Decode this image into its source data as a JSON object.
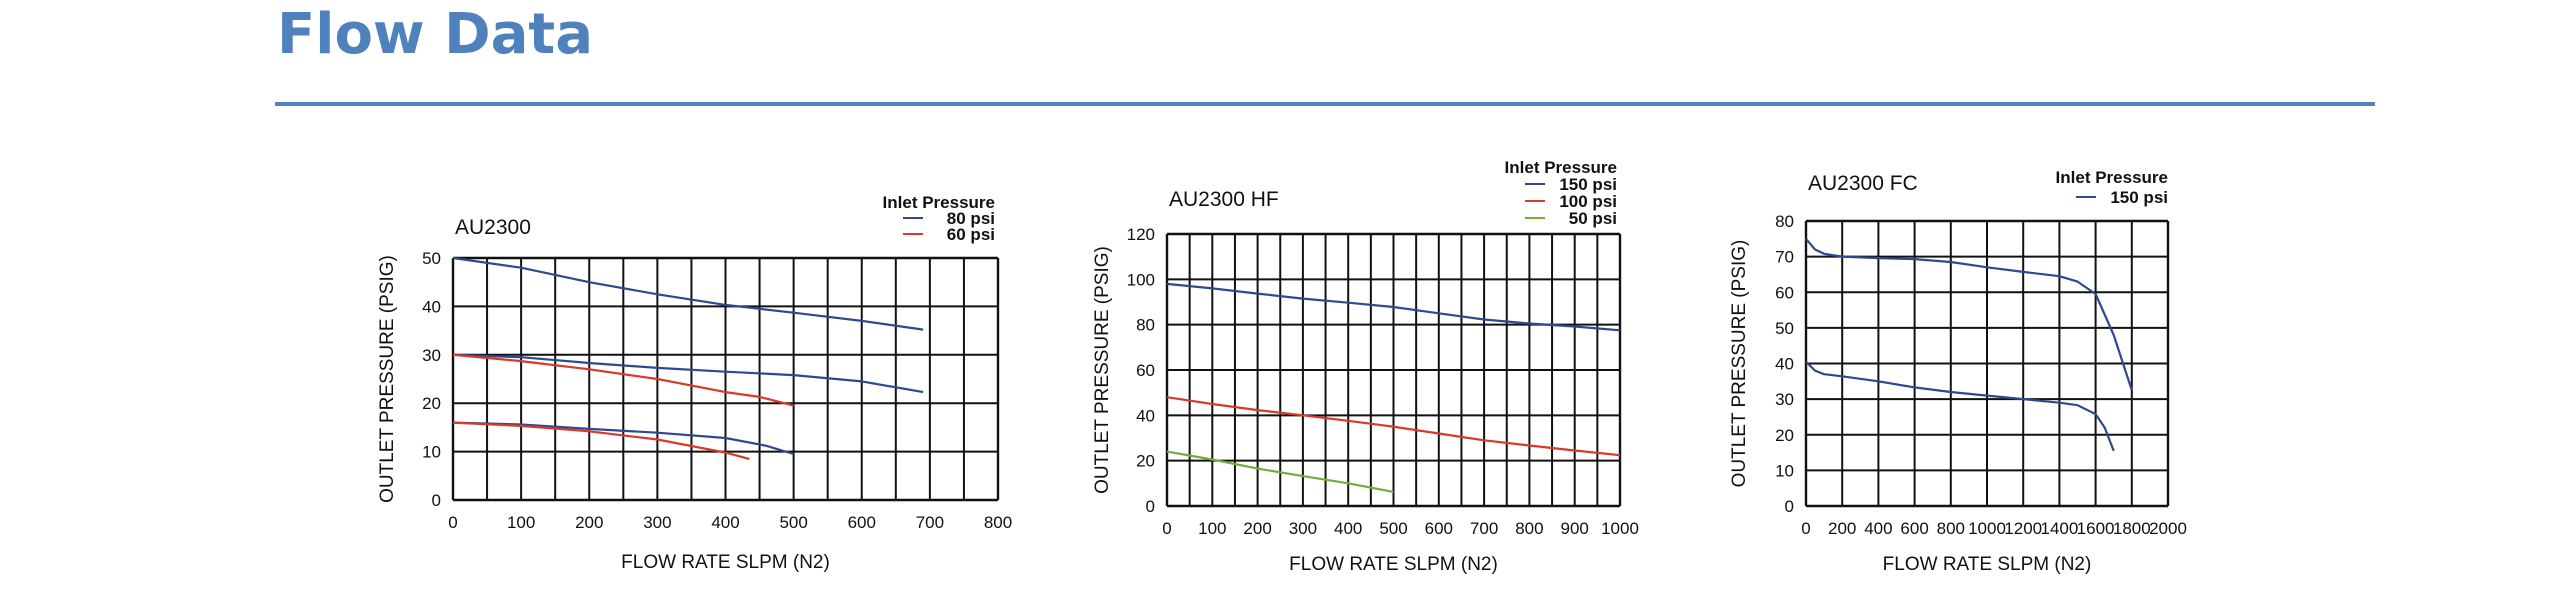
{
  "page": {
    "heading": "Flow Data",
    "accent_color": "#4f81bd"
  },
  "chart_data": [
    {
      "type": "line",
      "title": "AU2300",
      "xlabel": "FLOW RATE SLPM (N2)",
      "ylabel": "OUTLET PRESSURE (PSIG)",
      "xlim": [
        0,
        800
      ],
      "ylim": [
        0,
        50
      ],
      "xticks": [
        0,
        100,
        200,
        300,
        400,
        500,
        600,
        700,
        800
      ],
      "yticks": [
        0,
        10,
        20,
        30,
        40,
        50
      ],
      "x_minor_step": 50,
      "grid": true,
      "legend_title": "Inlet Pressure",
      "legend_position": "top-right",
      "series": [
        {
          "name": "80 psi",
          "color": "#2e4a8c",
          "points": [
            [
              [
                0,
                50
              ],
              [
                100,
                48
              ],
              [
                200,
                45
              ],
              [
                300,
                42.5
              ],
              [
                400,
                40.3
              ],
              [
                500,
                38.7
              ],
              [
                600,
                37
              ],
              [
                690,
                35.2
              ]
            ],
            [
              [
                0,
                30
              ],
              [
                100,
                29.5
              ],
              [
                200,
                28.3
              ],
              [
                300,
                27.3
              ],
              [
                400,
                26.5
              ],
              [
                500,
                25.8
              ],
              [
                600,
                24.5
              ],
              [
                690,
                22.3
              ]
            ],
            [
              [
                0,
                16
              ],
              [
                100,
                15.6
              ],
              [
                200,
                14.7
              ],
              [
                300,
                13.9
              ],
              [
                400,
                12.8
              ],
              [
                460,
                11.2
              ],
              [
                500,
                9.5
              ]
            ]
          ]
        },
        {
          "name": "60 psi",
          "color": "#d9382b",
          "points": [
            [
              [
                0,
                30
              ],
              [
                100,
                28.7
              ],
              [
                200,
                27
              ],
              [
                300,
                25
              ],
              [
                400,
                22.3
              ],
              [
                450,
                21.3
              ],
              [
                500,
                19.5
              ]
            ],
            [
              [
                0,
                16
              ],
              [
                100,
                15.3
              ],
              [
                200,
                14.2
              ],
              [
                300,
                12.5
              ],
              [
                400,
                9.8
              ],
              [
                435,
                8.5
              ]
            ]
          ]
        }
      ]
    },
    {
      "type": "line",
      "title": "AU2300  HF",
      "xlabel": "FLOW RATE SLPM (N2)",
      "ylabel": "OUTLET PRESSURE (PSIG)",
      "xlim": [
        0,
        1000
      ],
      "ylim": [
        0,
        120
      ],
      "xticks": [
        0,
        100,
        200,
        300,
        400,
        500,
        600,
        700,
        800,
        900,
        1000
      ],
      "yticks": [
        0,
        20,
        40,
        60,
        80,
        100,
        120
      ],
      "x_minor_step": 50,
      "grid": true,
      "legend_title": "Inlet Pressure",
      "legend_position": "top-right",
      "series": [
        {
          "name": "150  psi",
          "color": "#2e4a8c",
          "points": [
            [
              [
                0,
                98
              ],
              [
                100,
                96
              ],
              [
                200,
                93.7
              ],
              [
                300,
                91.5
              ],
              [
                400,
                89.7
              ],
              [
                500,
                87.8
              ],
              [
                600,
                85
              ],
              [
                700,
                82.3
              ],
              [
                800,
                80.5
              ],
              [
                900,
                79.2
              ],
              [
                1000,
                77.5
              ]
            ]
          ]
        },
        {
          "name": "100  psi",
          "color": "#d9382b",
          "points": [
            [
              [
                0,
                48
              ],
              [
                100,
                45
              ],
              [
                200,
                42.3
              ],
              [
                300,
                40
              ],
              [
                400,
                37.6
              ],
              [
                500,
                35
              ],
              [
                600,
                32
              ],
              [
                700,
                29
              ],
              [
                800,
                26.7
              ],
              [
                900,
                24.5
              ],
              [
                1000,
                22.4
              ]
            ]
          ]
        },
        {
          "name": "50  psi",
          "color": "#74ac3b",
          "points": [
            [
              [
                0,
                24
              ],
              [
                100,
                20.5
              ],
              [
                200,
                16.5
              ],
              [
                300,
                13.2
              ],
              [
                400,
                10
              ],
              [
                500,
                6.2
              ]
            ]
          ]
        }
      ]
    },
    {
      "type": "line",
      "title": "AU2300  FC",
      "xlabel": "FLOW RATE SLPM (N2)",
      "ylabel": "OUTLET PRESSURE (PSIG)",
      "xlim": [
        0,
        2000
      ],
      "ylim": [
        0,
        80
      ],
      "xticks": [
        0,
        200,
        400,
        600,
        800,
        1000,
        1200,
        1400,
        1600,
        1800,
        2000
      ],
      "yticks": [
        0,
        10,
        20,
        30,
        40,
        50,
        60,
        70,
        80
      ],
      "x_minor_step": 200,
      "grid": true,
      "legend_title": "Inlet Pressure",
      "legend_position": "top-right",
      "series": [
        {
          "name": "150  psi",
          "color": "#2e4a8c",
          "points": [
            [
              [
                0,
                75
              ],
              [
                50,
                72
              ],
              [
                100,
                70.8
              ],
              [
                200,
                70
              ],
              [
                400,
                69.6
              ],
              [
                600,
                69.3
              ],
              [
                800,
                68.5
              ],
              [
                1000,
                67
              ],
              [
                1200,
                65.7
              ],
              [
                1400,
                64.5
              ],
              [
                1500,
                63
              ],
              [
                1600,
                59.5
              ],
              [
                1700,
                48
              ],
              [
                1800,
                32.5
              ]
            ],
            [
              [
                0,
                40.5
              ],
              [
                50,
                38
              ],
              [
                100,
                37
              ],
              [
                200,
                36.4
              ],
              [
                400,
                35
              ],
              [
                600,
                33.3
              ],
              [
                800,
                32
              ],
              [
                1000,
                31
              ],
              [
                1200,
                30
              ],
              [
                1400,
                29
              ],
              [
                1500,
                28.3
              ],
              [
                1600,
                25.8
              ],
              [
                1650,
                22
              ],
              [
                1700,
                15.5
              ]
            ]
          ]
        }
      ]
    }
  ]
}
